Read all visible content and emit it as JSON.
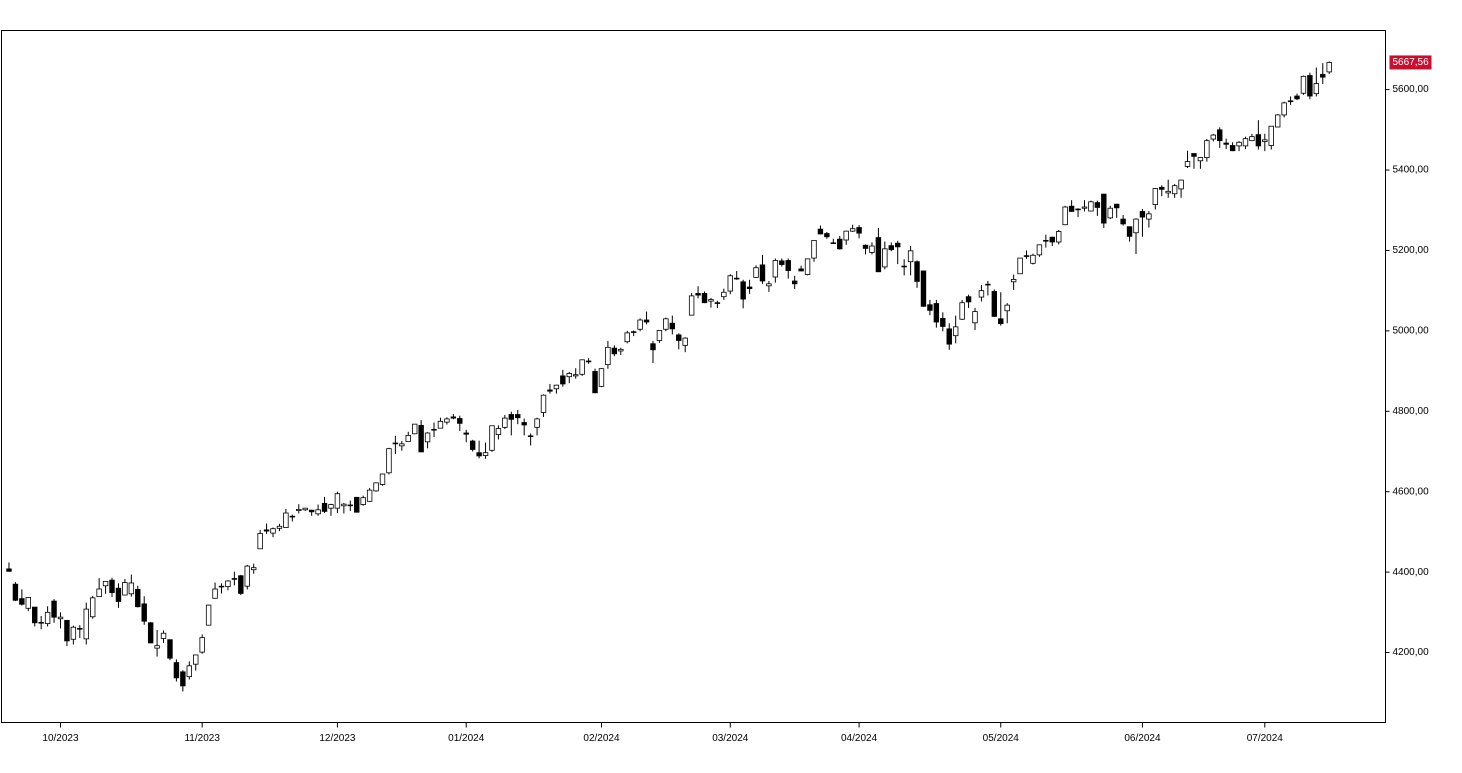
{
  "chart_data": {
    "type": "candlestick",
    "ohlc": [
      [
        4408,
        4424,
        4401,
        4402
      ],
      [
        4370,
        4375,
        4328,
        4330
      ],
      [
        4334,
        4357,
        4317,
        4320
      ],
      [
        4310,
        4338,
        4303,
        4337
      ],
      [
        4313,
        4313,
        4265,
        4274
      ],
      [
        4275,
        4291,
        4258,
        4275
      ],
      [
        4272,
        4315,
        4265,
        4300
      ],
      [
        4328,
        4333,
        4274,
        4288
      ],
      [
        4284,
        4300,
        4260,
        4288
      ],
      [
        4280,
        4281,
        4216,
        4229
      ],
      [
        4233,
        4267,
        4220,
        4263
      ],
      [
        4260,
        4268,
        4236,
        4258
      ],
      [
        4234,
        4324,
        4220,
        4308
      ],
      [
        4289,
        4341,
        4284,
        4336
      ],
      [
        4339,
        4385,
        4339,
        4358
      ],
      [
        4366,
        4378,
        4346,
        4377
      ],
      [
        4380,
        4386,
        4338,
        4349
      ],
      [
        4360,
        4372,
        4311,
        4327
      ],
      [
        4343,
        4383,
        4342,
        4374
      ],
      [
        4346,
        4394,
        4339,
        4373
      ],
      [
        4357,
        4366,
        4312,
        4314
      ],
      [
        4321,
        4340,
        4269,
        4278
      ],
      [
        4274,
        4276,
        4223,
        4224
      ],
      [
        4211,
        4256,
        4190,
        4217
      ],
      [
        4235,
        4255,
        4224,
        4248
      ],
      [
        4232,
        4232,
        4181,
        4186
      ],
      [
        4175,
        4183,
        4128,
        4137
      ],
      [
        4152,
        4156,
        4103,
        4117
      ],
      [
        4140,
        4178,
        4133,
        4167
      ],
      [
        4171,
        4194,
        4155,
        4194
      ],
      [
        4201,
        4245,
        4197,
        4237
      ],
      [
        4268,
        4319,
        4268,
        4318
      ],
      [
        4335,
        4374,
        4334,
        4358
      ],
      [
        4364,
        4372,
        4347,
        4365
      ],
      [
        4364,
        4380,
        4355,
        4378
      ],
      [
        4384,
        4401,
        4367,
        4383
      ],
      [
        4391,
        4393,
        4343,
        4347
      ],
      [
        4365,
        4418,
        4357,
        4415
      ],
      [
        4406,
        4421,
        4396,
        4411
      ],
      [
        4458,
        4505,
        4458,
        4496
      ],
      [
        4505,
        4521,
        4495,
        4502
      ],
      [
        4497,
        4511,
        4487,
        4508
      ],
      [
        4509,
        4520,
        4502,
        4514
      ],
      [
        4511,
        4557,
        4511,
        4547
      ],
      [
        4539,
        4543,
        4526,
        4538
      ],
      [
        4553,
        4569,
        4546,
        4556
      ],
      [
        4555,
        4560,
        4552,
        4559
      ],
      [
        4554,
        4555,
        4540,
        4550
      ],
      [
        4545,
        4568,
        4540,
        4555
      ],
      [
        4571,
        4587,
        4547,
        4551
      ],
      [
        4559,
        4570,
        4540,
        4568
      ],
      [
        4559,
        4600,
        4547,
        4595
      ],
      [
        4565,
        4572,
        4546,
        4569
      ],
      [
        4567,
        4578,
        4552,
        4567
      ],
      [
        4586,
        4587,
        4548,
        4549
      ],
      [
        4568,
        4590,
        4565,
        4585
      ],
      [
        4576,
        4609,
        4575,
        4604
      ],
      [
        4602,
        4623,
        4600,
        4622
      ],
      [
        4618,
        4645,
        4615,
        4644
      ],
      [
        4647,
        4709,
        4643,
        4707
      ],
      [
        4721,
        4739,
        4694,
        4720
      ],
      [
        4714,
        4726,
        4702,
        4719
      ],
      [
        4725,
        4749,
        4725,
        4740
      ],
      [
        4744,
        4768,
        4743,
        4768
      ],
      [
        4765,
        4778,
        4699,
        4699
      ],
      [
        4724,
        4748,
        4708,
        4746
      ],
      [
        4754,
        4772,
        4736,
        4755
      ],
      [
        4758,
        4784,
        4758,
        4775
      ],
      [
        4773,
        4785,
        4767,
        4781
      ],
      [
        4786,
        4793,
        4780,
        4783
      ],
      [
        4782,
        4789,
        4751,
        4770
      ],
      [
        4746,
        4754,
        4723,
        4743
      ],
      [
        4726,
        4729,
        4700,
        4705
      ],
      [
        4697,
        4727,
        4683,
        4689
      ],
      [
        4690,
        4722,
        4682,
        4697
      ],
      [
        4703,
        4764,
        4699,
        4764
      ],
      [
        4742,
        4765,
        4730,
        4757
      ],
      [
        4760,
        4791,
        4756,
        4783
      ],
      [
        4792,
        4799,
        4740,
        4780
      ],
      [
        4792,
        4803,
        4768,
        4784
      ],
      [
        4772,
        4782,
        4740,
        4766
      ],
      [
        4739,
        4745,
        4715,
        4739
      ],
      [
        4760,
        4784,
        4740,
        4781
      ],
      [
        4797,
        4842,
        4786,
        4840
      ],
      [
        4853,
        4868,
        4844,
        4850
      ],
      [
        4856,
        4866,
        4844,
        4865
      ],
      [
        4888,
        4903,
        4861,
        4868
      ],
      [
        4886,
        4898,
        4870,
        4894
      ],
      [
        4888,
        4907,
        4881,
        4891
      ],
      [
        4892,
        4929,
        4888,
        4928
      ],
      [
        4925,
        4932,
        4918,
        4925
      ],
      [
        4899,
        4906,
        4845,
        4846
      ],
      [
        4862,
        4907,
        4860,
        4906
      ],
      [
        4916,
        4975,
        4906,
        4959
      ],
      [
        4957,
        4964,
        4937,
        4943
      ],
      [
        4950,
        4958,
        4940,
        4954
      ],
      [
        4973,
        5000,
        4969,
        4995
      ],
      [
        4996,
        5001,
        4987,
        4998
      ],
      [
        5004,
        5031,
        4999,
        5027
      ],
      [
        5027,
        5048,
        5016,
        5022
      ],
      [
        4968,
        4975,
        4920,
        4953
      ],
      [
        4976,
        5002,
        4970,
        5001
      ],
      [
        5004,
        5033,
        4999,
        5030
      ],
      [
        5019,
        5038,
        4991,
        5005
      ],
      [
        4990,
        4994,
        4954,
        4976
      ],
      [
        4964,
        4984,
        4947,
        4982
      ],
      [
        5039,
        5094,
        5039,
        5087
      ],
      [
        5093,
        5111,
        5081,
        5089
      ],
      [
        5093,
        5098,
        5069,
        5070
      ],
      [
        5074,
        5082,
        5058,
        5078
      ],
      [
        5068,
        5075,
        5057,
        5070
      ],
      [
        5085,
        5105,
        5077,
        5096
      ],
      [
        5099,
        5141,
        5091,
        5137
      ],
      [
        5130,
        5149,
        5127,
        5131
      ],
      [
        5122,
        5127,
        5056,
        5079
      ],
      [
        5109,
        5127,
        5092,
        5105
      ],
      [
        5133,
        5163,
        5132,
        5157
      ],
      [
        5164,
        5189,
        5117,
        5124
      ],
      [
        5112,
        5124,
        5097,
        5117
      ],
      [
        5134,
        5180,
        5120,
        5175
      ],
      [
        5174,
        5180,
        5160,
        5165
      ],
      [
        5175,
        5180,
        5130,
        5150
      ],
      [
        5124,
        5137,
        5104,
        5117
      ],
      [
        5154,
        5162,
        5148,
        5149
      ],
      [
        5140,
        5180,
        5138,
        5179
      ],
      [
        5181,
        5226,
        5172,
        5225
      ],
      [
        5253,
        5262,
        5240,
        5241
      ],
      [
        5242,
        5246,
        5229,
        5234
      ],
      [
        5219,
        5229,
        5216,
        5218
      ],
      [
        5228,
        5236,
        5202,
        5204
      ],
      [
        5226,
        5249,
        5214,
        5248
      ],
      [
        5248,
        5264,
        5246,
        5254
      ],
      [
        5257,
        5263,
        5230,
        5243
      ],
      [
        5213,
        5215,
        5190,
        5205
      ],
      [
        5195,
        5220,
        5190,
        5211
      ],
      [
        5232,
        5256,
        5146,
        5147
      ],
      [
        5159,
        5222,
        5153,
        5204
      ],
      [
        5212,
        5220,
        5198,
        5202
      ],
      [
        5218,
        5224,
        5166,
        5209
      ],
      [
        5160,
        5178,
        5138,
        5161
      ],
      [
        5172,
        5211,
        5138,
        5199
      ],
      [
        5172,
        5175,
        5107,
        5123
      ],
      [
        5149,
        5150,
        5060,
        5061
      ],
      [
        5065,
        5077,
        5039,
        5051
      ],
      [
        5068,
        5077,
        5008,
        5022
      ],
      [
        5031,
        5046,
        4999,
        5011
      ],
      [
        5005,
        5019,
        4953,
        4967
      ],
      [
        4988,
        5038,
        4969,
        5010
      ],
      [
        5029,
        5077,
        5027,
        5070
      ],
      [
        5085,
        5090,
        5057,
        5072
      ],
      [
        5020,
        5057,
        5002,
        5048
      ],
      [
        5084,
        5114,
        5073,
        5100
      ],
      [
        5114,
        5124,
        5088,
        5116
      ],
      [
        5098,
        5103,
        5035,
        5036
      ],
      [
        5030,
        5096,
        5013,
        5018
      ],
      [
        5050,
        5069,
        5019,
        5064
      ],
      [
        5122,
        5140,
        5102,
        5128
      ],
      [
        5142,
        5181,
        5142,
        5181
      ],
      [
        5187,
        5200,
        5179,
        5187
      ],
      [
        5168,
        5192,
        5165,
        5188
      ],
      [
        5189,
        5215,
        5184,
        5214
      ],
      [
        5225,
        5239,
        5207,
        5223
      ],
      [
        5233,
        5234,
        5211,
        5221
      ],
      [
        5221,
        5251,
        5215,
        5247
      ],
      [
        5264,
        5311,
        5263,
        5308
      ],
      [
        5310,
        5325,
        5296,
        5297
      ],
      [
        5303,
        5305,
        5283,
        5303
      ],
      [
        5305,
        5325,
        5297,
        5308
      ],
      [
        5298,
        5324,
        5297,
        5321
      ],
      [
        5319,
        5324,
        5286,
        5307
      ],
      [
        5340,
        5341,
        5256,
        5268
      ],
      [
        5281,
        5311,
        5278,
        5305
      ],
      [
        5315,
        5316,
        5281,
        5306
      ],
      [
        5278,
        5288,
        5262,
        5266
      ],
      [
        5259,
        5260,
        5222,
        5235
      ],
      [
        5244,
        5280,
        5191,
        5278
      ],
      [
        5297,
        5303,
        5234,
        5283
      ],
      [
        5278,
        5298,
        5257,
        5291
      ],
      [
        5314,
        5355,
        5302,
        5354
      ],
      [
        5357,
        5362,
        5335,
        5352
      ],
      [
        5343,
        5376,
        5331,
        5347
      ],
      [
        5341,
        5365,
        5331,
        5361
      ],
      [
        5353,
        5376,
        5331,
        5375
      ],
      [
        5409,
        5448,
        5405,
        5421
      ],
      [
        5441,
        5442,
        5403,
        5434
      ],
      [
        5423,
        5432,
        5403,
        5431
      ],
      [
        5431,
        5477,
        5421,
        5473
      ],
      [
        5477,
        5490,
        5471,
        5487
      ],
      [
        5500,
        5506,
        5455,
        5473
      ],
      [
        5467,
        5478,
        5452,
        5464
      ],
      [
        5461,
        5469,
        5447,
        5448
      ],
      [
        5460,
        5472,
        5447,
        5469
      ],
      [
        5460,
        5483,
        5452,
        5478
      ],
      [
        5473,
        5490,
        5472,
        5483
      ],
      [
        5488,
        5524,
        5451,
        5460
      ],
      [
        5471,
        5490,
        5447,
        5475
      ],
      [
        5461,
        5509,
        5451,
        5509
      ],
      [
        5507,
        5539,
        5507,
        5537
      ],
      [
        5537,
        5570,
        5531,
        5567
      ],
      [
        5572,
        5583,
        5562,
        5572
      ],
      [
        5584,
        5590,
        5574,
        5577
      ],
      [
        5591,
        5635,
        5587,
        5633
      ],
      [
        5635,
        5642,
        5576,
        5584
      ],
      [
        5590,
        5655,
        5583,
        5615
      ],
      [
        5638,
        5666,
        5614,
        5631
      ],
      [
        5644,
        5670,
        5639,
        5667.56
      ]
    ],
    "up_color": "#ffffff",
    "down_color": "#000000",
    "last_value": {
      "value": 5667.56,
      "label": "5667,56"
    },
    "last_value_color": "#c8102e",
    "xlim": [
      -1.16,
      213.74
    ],
    "xticks": [
      {
        "value": 8,
        "label": "10/2023"
      },
      {
        "value": 30,
        "label": "11/2023"
      },
      {
        "value": 51,
        "label": "12/2023"
      },
      {
        "value": 71,
        "label": "01/2024"
      },
      {
        "value": 92,
        "label": "02/2024"
      },
      {
        "value": 112,
        "label": "03/2024"
      },
      {
        "value": 132,
        "label": "04/2024"
      },
      {
        "value": 154,
        "label": "05/2024"
      },
      {
        "value": 176,
        "label": "06/2024"
      },
      {
        "value": 195,
        "label": "07/2024"
      }
    ],
    "ylim": [
      4026,
      5747
    ],
    "yticks": [
      {
        "value": 4200,
        "label": "4200,00"
      },
      {
        "value": 4400,
        "label": "4400,00"
      },
      {
        "value": 4600,
        "label": "4600,00"
      },
      {
        "value": 4800,
        "label": "4800,00"
      },
      {
        "value": 5000,
        "label": "5000,00"
      },
      {
        "value": 5200,
        "label": "5200,00"
      },
      {
        "value": 5400,
        "label": "5400,00"
      },
      {
        "value": 5600,
        "label": "5600,00"
      }
    ]
  }
}
